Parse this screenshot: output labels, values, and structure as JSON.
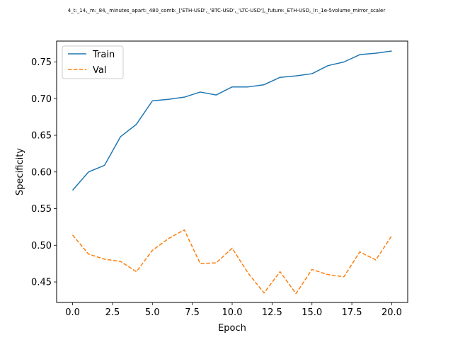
{
  "chart_data": {
    "type": "line",
    "title": "4_t:_14,_m:_84,_minutes_apart:_480_comb:_['ETH-USD',_'BTC-USD',_'LTC-USD'],_future:_ETH-USD,_lr:_1e-5volume_mirror_scaler",
    "xlabel": "Epoch",
    "ylabel": "Specificity",
    "xlim": [
      -1.0,
      21.0
    ],
    "ylim": [
      0.422,
      0.7785
    ],
    "xticks": [
      0.0,
      2.5,
      5.0,
      7.5,
      10.0,
      12.5,
      15.0,
      17.5,
      20.0
    ],
    "xtick_labels": [
      "0.0",
      "2.5",
      "5.0",
      "7.5",
      "10.0",
      "12.5",
      "15.0",
      "17.5",
      "20.0"
    ],
    "yticks": [
      0.45,
      0.5,
      0.55,
      0.6,
      0.65,
      0.7,
      0.75
    ],
    "ytick_labels": [
      "0.45",
      "0.50",
      "0.55",
      "0.60",
      "0.65",
      "0.70",
      "0.75"
    ],
    "grid": false,
    "legend_position": "top-left",
    "x": [
      0,
      1,
      2,
      3,
      4,
      5,
      6,
      7,
      8,
      9,
      10,
      11,
      12,
      13,
      14,
      15,
      16,
      17,
      18,
      19,
      20
    ],
    "series": [
      {
        "name": "Train",
        "color": "#1f77b4",
        "style": "solid",
        "values": [
          0.575,
          0.6,
          0.609,
          0.648,
          0.665,
          0.697,
          0.699,
          0.702,
          0.709,
          0.705,
          0.716,
          0.716,
          0.719,
          0.729,
          0.731,
          0.734,
          0.745,
          0.75,
          0.76,
          0.762,
          0.765
        ]
      },
      {
        "name": "Val",
        "color": "#ff7f0e",
        "style": "dashed",
        "values": [
          0.514,
          0.488,
          0.481,
          0.478,
          0.464,
          0.493,
          0.509,
          0.521,
          0.475,
          0.476,
          0.496,
          0.462,
          0.435,
          0.464,
          0.434,
          0.467,
          0.46,
          0.457,
          0.491,
          0.48,
          0.513
        ]
      }
    ]
  }
}
